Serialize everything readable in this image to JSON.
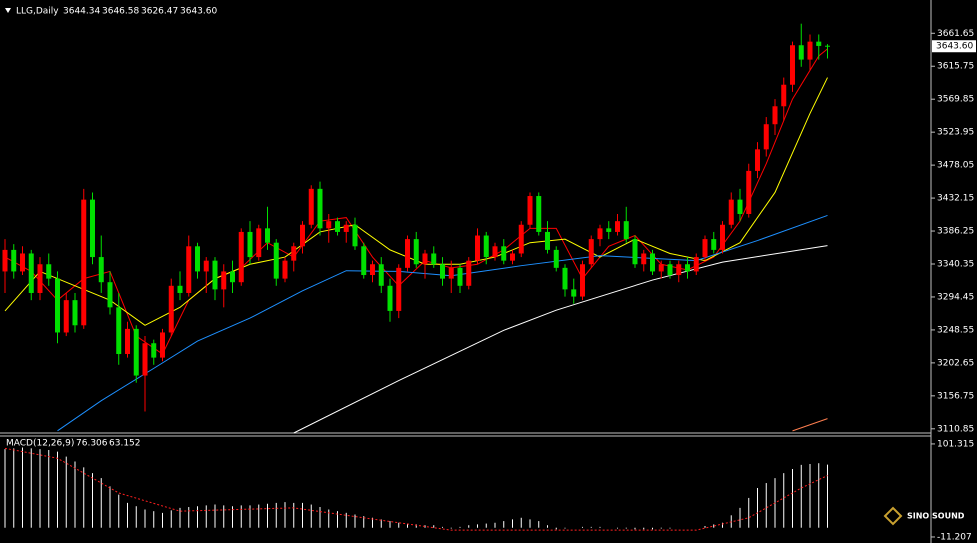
{
  "chart_data": {
    "type": "candlestick",
    "title": "LLG,Daily",
    "last_labels": [
      "3644.34",
      "3646.58",
      "3626.47",
      "3643.60"
    ],
    "up_color": "#ff0000",
    "down_color": "#00e000",
    "ylim": [
      3105,
      3708
    ],
    "yticks": [
      3661.65,
      3615.75,
      3569.85,
      3523.95,
      3478.05,
      3432.15,
      3386.25,
      3340.35,
      3294.45,
      3248.55,
      3202.65,
      3156.75,
      3110.85
    ],
    "ohlc": [
      [
        3330,
        3375,
        3300,
        3360
      ],
      [
        3360,
        3368,
        3320,
        3330
      ],
      [
        3330,
        3365,
        3325,
        3355
      ],
      [
        3355,
        3360,
        3290,
        3300
      ],
      [
        3300,
        3350,
        3290,
        3340
      ],
      [
        3340,
        3355,
        3310,
        3320
      ],
      [
        3320,
        3330,
        3230,
        3245
      ],
      [
        3245,
        3300,
        3240,
        3290
      ],
      [
        3290,
        3300,
        3245,
        3255
      ],
      [
        3255,
        3445,
        3250,
        3430
      ],
      [
        3430,
        3440,
        3340,
        3350
      ],
      [
        3350,
        3380,
        3300,
        3315
      ],
      [
        3315,
        3330,
        3270,
        3280
      ],
      [
        3280,
        3300,
        3200,
        3215
      ],
      [
        3215,
        3260,
        3210,
        3250
      ],
      [
        3250,
        3255,
        3175,
        3185
      ],
      [
        3185,
        3240,
        3135,
        3230
      ],
      [
        3230,
        3235,
        3200,
        3210
      ],
      [
        3210,
        3250,
        3205,
        3245
      ],
      [
        3245,
        3320,
        3240,
        3310
      ],
      [
        3310,
        3330,
        3290,
        3300
      ],
      [
        3300,
        3380,
        3295,
        3365
      ],
      [
        3365,
        3370,
        3320,
        3330
      ],
      [
        3330,
        3350,
        3300,
        3345
      ],
      [
        3345,
        3350,
        3290,
        3305
      ],
      [
        3305,
        3340,
        3280,
        3330
      ],
      [
        3330,
        3345,
        3300,
        3315
      ],
      [
        3315,
        3390,
        3310,
        3385
      ],
      [
        3385,
        3400,
        3340,
        3350
      ],
      [
        3350,
        3395,
        3345,
        3390
      ],
      [
        3390,
        3420,
        3360,
        3370
      ],
      [
        3370,
        3375,
        3310,
        3320
      ],
      [
        3320,
        3350,
        3315,
        3345
      ],
      [
        3345,
        3370,
        3330,
        3365
      ],
      [
        3365,
        3400,
        3355,
        3395
      ],
      [
        3395,
        3450,
        3390,
        3445
      ],
      [
        3445,
        3455,
        3380,
        3390
      ],
      [
        3390,
        3410,
        3370,
        3400
      ],
      [
        3400,
        3405,
        3380,
        3385
      ],
      [
        3385,
        3400,
        3370,
        3395
      ],
      [
        3395,
        3405,
        3360,
        3365
      ],
      [
        3365,
        3370,
        3320,
        3325
      ],
      [
        3325,
        3345,
        3315,
        3340
      ],
      [
        3340,
        3350,
        3300,
        3310
      ],
      [
        3310,
        3320,
        3260,
        3275
      ],
      [
        3275,
        3340,
        3265,
        3335
      ],
      [
        3335,
        3380,
        3330,
        3375
      ],
      [
        3375,
        3385,
        3335,
        3340
      ],
      [
        3340,
        3360,
        3320,
        3355
      ],
      [
        3355,
        3365,
        3335,
        3340
      ],
      [
        3340,
        3350,
        3310,
        3320
      ],
      [
        3320,
        3345,
        3300,
        3335
      ],
      [
        3335,
        3340,
        3300,
        3310
      ],
      [
        3310,
        3350,
        3305,
        3345
      ],
      [
        3345,
        3390,
        3340,
        3380
      ],
      [
        3380,
        3385,
        3340,
        3350
      ],
      [
        3350,
        3370,
        3345,
        3365
      ],
      [
        3365,
        3375,
        3340,
        3345
      ],
      [
        3345,
        3360,
        3340,
        3355
      ],
      [
        3355,
        3400,
        3350,
        3395
      ],
      [
        3395,
        3440,
        3390,
        3435
      ],
      [
        3435,
        3440,
        3380,
        3385
      ],
      [
        3385,
        3400,
        3355,
        3360
      ],
      [
        3360,
        3365,
        3330,
        3335
      ],
      [
        3335,
        3340,
        3295,
        3305
      ],
      [
        3305,
        3320,
        3285,
        3295
      ],
      [
        3295,
        3345,
        3290,
        3340
      ],
      [
        3340,
        3380,
        3335,
        3375
      ],
      [
        3375,
        3395,
        3365,
        3390
      ],
      [
        3390,
        3400,
        3375,
        3385
      ],
      [
        3385,
        3410,
        3380,
        3400
      ],
      [
        3400,
        3420,
        3370,
        3375
      ],
      [
        3375,
        3380,
        3335,
        3340
      ],
      [
        3340,
        3360,
        3330,
        3355
      ],
      [
        3355,
        3360,
        3325,
        3330
      ],
      [
        3330,
        3345,
        3320,
        3340
      ],
      [
        3340,
        3345,
        3320,
        3325
      ],
      [
        3325,
        3345,
        3315,
        3340
      ],
      [
        3340,
        3350,
        3320,
        3330
      ],
      [
        3330,
        3355,
        3325,
        3350
      ],
      [
        3350,
        3380,
        3345,
        3375
      ],
      [
        3375,
        3385,
        3355,
        3360
      ],
      [
        3360,
        3400,
        3355,
        3395
      ],
      [
        3395,
        3440,
        3390,
        3430
      ],
      [
        3430,
        3445,
        3400,
        3410
      ],
      [
        3410,
        3480,
        3405,
        3470
      ],
      [
        3470,
        3510,
        3460,
        3500
      ],
      [
        3500,
        3545,
        3490,
        3535
      ],
      [
        3535,
        3570,
        3520,
        3560
      ],
      [
        3560,
        3600,
        3540,
        3590
      ],
      [
        3590,
        3650,
        3580,
        3645
      ],
      [
        3645,
        3675,
        3615,
        3625
      ],
      [
        3625,
        3660,
        3610,
        3650
      ],
      [
        3650,
        3660,
        3625,
        3644
      ],
      [
        3644.34,
        3646.58,
        3626.47,
        3643.6
      ]
    ],
    "series": [
      {
        "color": "#ff0000",
        "x": [
          0,
          3,
          6,
          9,
          12,
          15,
          18,
          21,
          24,
          27,
          30,
          33,
          36,
          39,
          42,
          45,
          48,
          51,
          54,
          57,
          60,
          63,
          66,
          69,
          72,
          75,
          78,
          81,
          84,
          87,
          90,
          93,
          94
        ],
        "values": [
          3350,
          3330,
          3290,
          3320,
          3330,
          3240,
          3215,
          3290,
          3320,
          3335,
          3370,
          3350,
          3400,
          3405,
          3350,
          3310,
          3345,
          3335,
          3340,
          3360,
          3390,
          3390,
          3320,
          3365,
          3380,
          3340,
          3332,
          3350,
          3400,
          3480,
          3570,
          3630,
          3640
        ]
      },
      {
        "color": "#ffff00",
        "x": [
          0,
          4,
          8,
          12,
          16,
          20,
          24,
          28,
          32,
          36,
          40,
          44,
          48,
          52,
          56,
          60,
          64,
          68,
          72,
          76,
          80,
          84,
          88,
          92,
          94
        ],
        "values": [
          3275,
          3330,
          3310,
          3290,
          3255,
          3280,
          3320,
          3340,
          3350,
          3385,
          3395,
          3360,
          3340,
          3340,
          3350,
          3370,
          3375,
          3350,
          3375,
          3355,
          3345,
          3370,
          3440,
          3550,
          3600
        ]
      },
      {
        "color": "#1e90ff",
        "x": [
          6,
          11,
          17,
          22,
          28,
          34,
          39,
          45,
          51,
          59,
          68,
          79,
          86,
          94
        ],
        "values": [
          3108,
          3150,
          3195,
          3233,
          3265,
          3303,
          3331,
          3330,
          3324,
          3338,
          3352,
          3345,
          3373,
          3408
        ]
      },
      {
        "color": "#ffffff",
        "x": [
          33,
          45,
          57,
          63,
          74,
          82,
          94
        ],
        "values": [
          3105,
          3178,
          3248,
          3276,
          3318,
          3343,
          3366
        ]
      },
      {
        "color": "#ff7f50",
        "x": [
          90,
          94
        ],
        "values": [
          3108,
          3125
        ]
      }
    ],
    "macd": {
      "label": "MACD(12,26,9)",
      "ylim": [
        -18.5,
        109.7
      ],
      "yticks": [
        101.315,
        -11.207
      ],
      "histogram": {
        "color": "#ffffff",
        "values": [
          95,
          96,
          97,
          96,
          95,
          94,
          92,
          86,
          80,
          73,
          66,
          60,
          50,
          40,
          30,
          26,
          22,
          20,
          18,
          21,
          24,
          25,
          26,
          27,
          28,
          27,
          26,
          27,
          27,
          28,
          29,
          30,
          31,
          30,
          30,
          28,
          25,
          22,
          20,
          18,
          16,
          14,
          12,
          10,
          8,
          6,
          5,
          4,
          3,
          3,
          1,
          -1,
          1,
          3,
          4,
          5,
          6,
          8,
          10,
          12,
          10,
          8,
          3,
          -2,
          -1,
          0,
          1,
          1,
          1,
          0,
          -1,
          -1,
          -2,
          -2,
          -2,
          -1,
          -1,
          0,
          0,
          0,
          2,
          4,
          6,
          15,
          24,
          36,
          48,
          54,
          60,
          66,
          71,
          76,
          77,
          78,
          76.306
        ]
      },
      "signal": {
        "color": "#ff2020",
        "x": [
          0,
          6,
          13,
          20,
          33,
          45,
          51,
          68,
          79,
          85,
          91,
          94
        ],
        "values": [
          96,
          84,
          42,
          20,
          24,
          6,
          -3,
          -3,
          -3,
          12,
          48,
          63.152
        ]
      }
    },
    "watermark": "SINO SOUND"
  }
}
